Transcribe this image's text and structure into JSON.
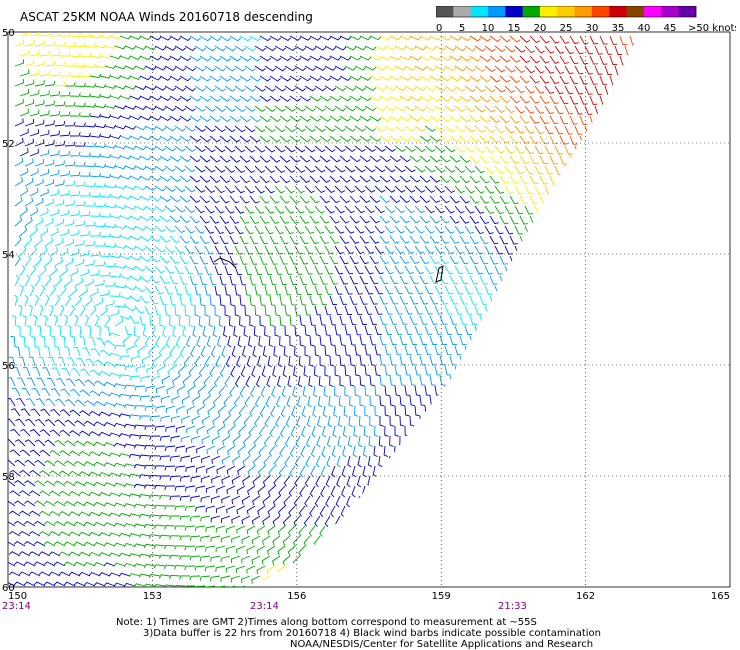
{
  "title": "ASCAT 25KM NOAA Winds 20160718 descending",
  "legend": {
    "ticks": [
      "0",
      "5",
      "10",
      "15",
      "20",
      "25",
      "30",
      "35",
      "40",
      "45",
      ">50 knots"
    ],
    "colors": [
      "#555555",
      "#aaaaaa",
      "#00e5ff",
      "#0099ff",
      "#0000cc",
      "#00aa00",
      "#ffee00",
      "#ffcc00",
      "#ff9900",
      "#ff4400",
      "#cc0000",
      "#884400",
      "#ff00ff",
      "#aa00cc",
      "#6600aa"
    ]
  },
  "map": {
    "lat_labels": [
      "50",
      "52",
      "54",
      "56",
      "58",
      "60"
    ],
    "lon_labels": [
      "150",
      "153",
      "156",
      "159",
      "162",
      "165"
    ],
    "time_labels": [
      "23:14",
      "23:14",
      "21:33"
    ]
  },
  "notes": {
    "line1": "Note: 1) Times are GMT 2)Times along bottom correspond to measurement at ~55S",
    "line2": "3)Data buffer is 22 hrs from 20160718 4) Black wind barbs indicate possible contamination",
    "line3": "NOAA/NESDIS/Center for Satellite Applications and Research"
  }
}
